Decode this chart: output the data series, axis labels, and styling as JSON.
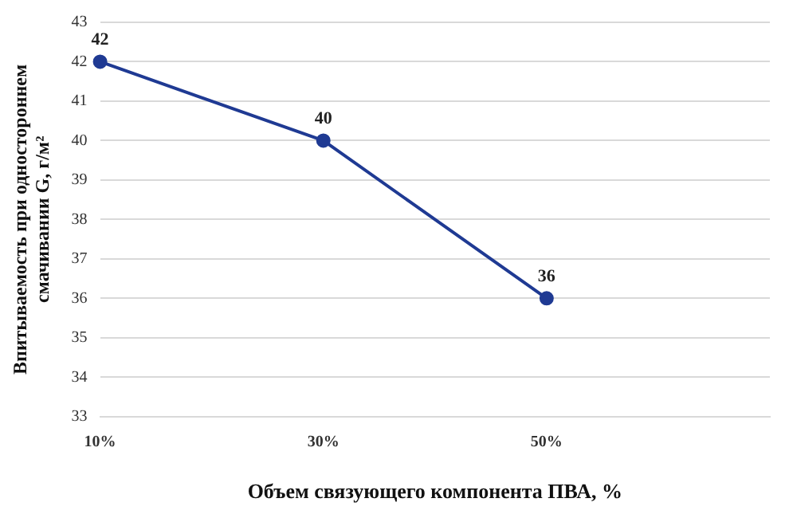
{
  "chart_data": {
    "type": "line",
    "xlabel": "Объем связующего компонента ПВА, %",
    "ylabel": "Впитываемость при одностороннем смачивании G, г/м²",
    "categories": [
      "10%",
      "30%",
      "50%",
      null
    ],
    "series": [
      {
        "color": "#1f3a93",
        "values": [
          42,
          40,
          36,
          null
        ]
      }
    ],
    "ylim": [
      33,
      43
    ],
    "yticks": [
      33,
      34,
      35,
      36,
      37,
      38,
      39,
      40,
      41,
      42,
      43
    ],
    "grid": "y",
    "legend": false,
    "marker": "circle",
    "line_style": "solid",
    "data_labels": true
  }
}
